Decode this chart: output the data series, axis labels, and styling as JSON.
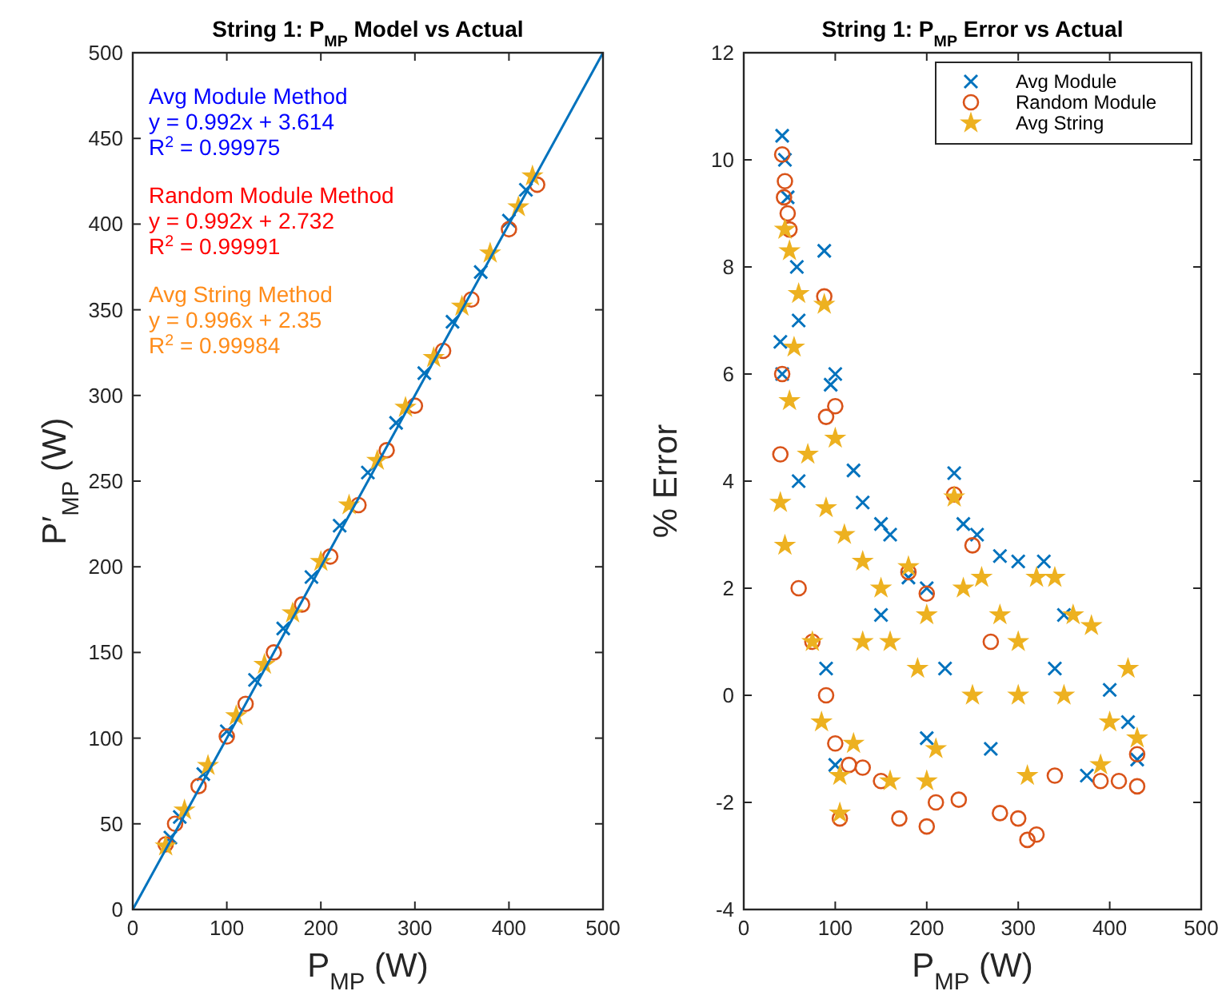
{
  "chart_data": [
    {
      "type": "scatter",
      "title": "String 1: P$_{MP}$ Model vs Actual",
      "xlabel": "P$_{MP}$ (W)",
      "ylabel": "P′$_{MP}$ (W)",
      "xlim": [
        0,
        500
      ],
      "ylim": [
        0,
        500
      ],
      "xticks": [
        0,
        100,
        200,
        300,
        400,
        500
      ],
      "yticks": [
        0,
        50,
        100,
        150,
        200,
        250,
        300,
        350,
        400,
        450,
        500
      ],
      "annotations": [
        "Avg Module Method",
        "y = 0.992x + 3.614",
        "R$^{2}$ = 0.99975",
        "Random Module Method",
        "y = 0.992x + 2.732",
        "R$^{2}$ = 0.99991",
        "Avg String Method",
        "y = 0.996x + 2.35",
        "R$^{2}$ = 0.99984"
      ],
      "series": [
        {
          "color": "#0072bd",
          "marker": "cross",
          "x": [
            40,
            50,
            75,
            100,
            130,
            160,
            190,
            220,
            250,
            280,
            310,
            340,
            370,
            400,
            418
          ],
          "values": [
            42,
            54,
            79,
            104,
            134,
            164,
            194,
            224,
            255,
            284,
            313,
            343,
            372,
            402,
            420
          ]
        },
        {
          "color": "#d95319",
          "marker": "circle",
          "x": [
            35,
            45,
            70,
            100,
            120,
            150,
            180,
            210,
            240,
            270,
            300,
            330,
            360,
            400,
            430
          ],
          "values": [
            38,
            50,
            72,
            101,
            120,
            150,
            178,
            206,
            236,
            268,
            294,
            326,
            356,
            397,
            423
          ]
        },
        {
          "color": "#edb120",
          "marker": "star",
          "x": [
            35,
            55,
            80,
            110,
            140,
            170,
            200,
            230,
            260,
            290,
            320,
            350,
            380,
            410,
            425
          ],
          "values": [
            37,
            58,
            84,
            113,
            143,
            173,
            203,
            236,
            262,
            293,
            322,
            352,
            383,
            410,
            428
          ]
        },
        {
          "type": "line",
          "color": "#0072bd",
          "x": [
            0,
            500
          ],
          "values": [
            0,
            500
          ]
        }
      ]
    },
    {
      "type": "scatter",
      "title": "String 1: P$_{MP}$ Error vs Actual",
      "xlabel": "P$_{MP}$ (W)",
      "ylabel": "% Error",
      "xlim": [
        0,
        500
      ],
      "ylim": [
        -4,
        12
      ],
      "xticks": [
        0,
        100,
        200,
        300,
        400,
        500
      ],
      "yticks": [
        -4,
        -2,
        0,
        2,
        4,
        6,
        8,
        10,
        12
      ],
      "legend": "top right",
      "series": [
        {
          "name": "Avg Module",
          "color": "#0072bd",
          "marker": "cross",
          "x": [
            42,
            45,
            48,
            58,
            88,
            40,
            42,
            60,
            100,
            95,
            120,
            130,
            150,
            160,
            180,
            200,
            230,
            240,
            255,
            280,
            300,
            328,
            350,
            400,
            420,
            430,
            375,
            100,
            90,
            270,
            220,
            150,
            60,
            340,
            200
          ],
          "values": [
            10.45,
            10,
            9.3,
            8.0,
            8.3,
            6.6,
            6.0,
            7,
            6.0,
            5.8,
            4.2,
            3.6,
            3.2,
            3.0,
            2.2,
            2.0,
            4.15,
            3.2,
            3.0,
            2.6,
            2.5,
            2.5,
            1.5,
            0.1,
            -0.5,
            -1.2,
            -1.5,
            -1.3,
            0.5,
            -1.0,
            0.5,
            1.5,
            4,
            0.5,
            -0.8
          ]
        },
        {
          "name": "Random Module",
          "color": "#d95319",
          "marker": "circle",
          "x": [
            42,
            45,
            44,
            48,
            50,
            88,
            42,
            100,
            90,
            40,
            60,
            75,
            90,
            100,
            115,
            130,
            150,
            170,
            200,
            210,
            230,
            250,
            235,
            280,
            310,
            320,
            300,
            340,
            390,
            410,
            430,
            430,
            105,
            180,
            270,
            200
          ],
          "values": [
            10.1,
            9.6,
            9.3,
            9.0,
            8.7,
            7.45,
            6.0,
            5.4,
            5.2,
            4.5,
            2.0,
            1.0,
            0.0,
            -0.9,
            -1.3,
            -1.35,
            -1.6,
            -2.3,
            -2.45,
            -2.0,
            3.75,
            2.8,
            -1.95,
            -2.2,
            -2.7,
            -2.6,
            -2.3,
            -1.5,
            -1.6,
            -1.6,
            -1.7,
            -1.1,
            -2.3,
            2.3,
            1.0,
            1.9
          ]
        },
        {
          "name": "Avg String",
          "color": "#edb120",
          "marker": "star",
          "x": [
            45,
            50,
            60,
            55,
            50,
            88,
            40,
            45,
            75,
            100,
            70,
            90,
            110,
            130,
            150,
            130,
            160,
            180,
            200,
            190,
            210,
            230,
            240,
            260,
            280,
            300,
            310,
            320,
            340,
            360,
            380,
            400,
            420,
            430,
            105,
            105,
            160,
            200,
            300,
            250,
            350,
            390,
            85,
            120
          ],
          "values": [
            8.7,
            8.3,
            7.5,
            6.5,
            5.5,
            7.3,
            3.6,
            2.8,
            1.0,
            4.8,
            4.5,
            3.5,
            3.0,
            2.5,
            2.0,
            1.0,
            1.0,
            2.4,
            1.5,
            0.5,
            -1.0,
            3.7,
            2.0,
            2.2,
            1.5,
            1.0,
            -1.5,
            2.2,
            2.2,
            1.5,
            1.3,
            -0.5,
            0.5,
            -0.8,
            -2.2,
            -1.5,
            -1.6,
            -1.6,
            0,
            0,
            0,
            -1.3,
            -0.5,
            -0.9
          ]
        }
      ]
    }
  ]
}
